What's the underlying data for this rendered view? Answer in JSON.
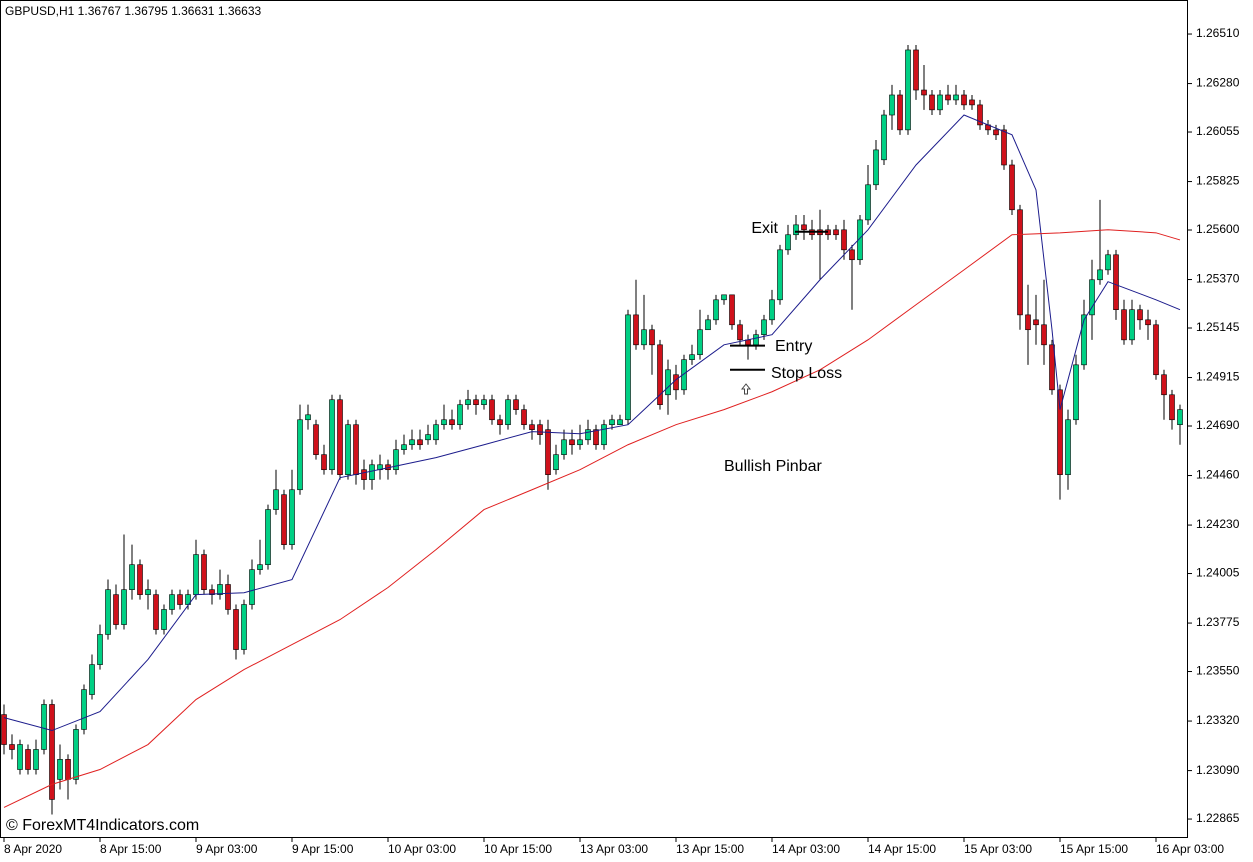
{
  "chart_data": {
    "type": "candlestick",
    "title": "GBPUSD,H1  1.36767 1.36795 1.36631 1.36633",
    "watermark": "© ForexMT4Indicators.com",
    "note": "Bullish Pinbar",
    "bull_color": "#00d084",
    "bear_color": "#d0111b",
    "wick_color": "#000000",
    "categories": [
      "8 Apr 2020",
      null,
      null,
      null,
      null,
      null,
      null,
      null,
      null,
      null,
      null,
      null,
      "8 Apr 15:00",
      null,
      null,
      null,
      null,
      null,
      null,
      null,
      null,
      null,
      null,
      null,
      "9 Apr 03:00",
      null,
      null,
      null,
      null,
      null,
      null,
      null,
      null,
      null,
      null,
      null,
      "9 Apr 15:00",
      null,
      null,
      null,
      null,
      null,
      null,
      null,
      null,
      null,
      null,
      null,
      "10 Apr 03:00",
      null,
      null,
      null,
      null,
      null,
      null,
      null,
      null,
      null,
      null,
      null,
      "10 Apr 15:00",
      null,
      null,
      null,
      null,
      null,
      null,
      null,
      null,
      null,
      null,
      null,
      "13 Apr 03:00",
      null,
      null,
      null,
      null,
      null,
      null,
      null,
      null,
      null,
      null,
      null,
      "13 Apr 15:00",
      null,
      null,
      null,
      null,
      null,
      null,
      null,
      null,
      null,
      null,
      null,
      "14 Apr 03:00",
      null,
      null,
      null,
      null,
      null,
      null,
      null,
      null,
      null,
      null,
      null,
      "14 Apr 15:00",
      null,
      null,
      null,
      null,
      null,
      null,
      null,
      null,
      null,
      null,
      null,
      "15 Apr 03:00",
      null,
      null,
      null,
      null,
      null,
      null,
      null,
      null,
      null,
      null,
      null,
      "15 Apr 15:00",
      null,
      null,
      null,
      null,
      null,
      null,
      null,
      null,
      null,
      null,
      null,
      "16 Apr 03:00",
      null,
      null,
      null
    ],
    "open": [
      1.2335,
      1.23211,
      1.23095,
      1.23188,
      1.23095,
      1.23188,
      1.23397,
      1.23049,
      1.23142,
      1.23049,
      1.23281,
      1.23443,
      1.23582,
      1.23722,
      1.23907,
      1.23768,
      1.2393,
      1.24046,
      1.23907,
      1.23907,
      1.23745,
      1.23838,
      1.23907,
      1.23861,
      1.23907,
      1.24093,
      1.2393,
      1.23907,
      1.23954,
      1.23838,
      1.23652,
      1.23861,
      1.24023,
      1.24046,
      1.24302,
      1.24371,
      1.24139,
      1.24394,
      1.24719,
      1.24696,
      1.24557,
      1.24487,
      1.24812,
      1.24464,
      1.24696,
      1.24487,
      1.24441,
      1.24487,
      1.2451,
      1.24487,
      1.2458,
      1.24603,
      1.24626,
      1.24626,
      1.24626,
      1.24696,
      1.24719,
      1.24696,
      1.24789,
      1.24812,
      1.24789,
      1.24812,
      1.24719,
      1.24696,
      1.24812,
      1.24766,
      1.24696,
      1.24696,
      1.24673,
      1.24487,
      1.24557,
      1.24626,
      1.24603,
      1.24626,
      1.24673,
      1.24603,
      1.24696,
      1.24696,
      1.24719,
      1.25206,
      1.25067,
      1.25137,
      1.25067,
      1.24835,
      1.24928,
      1.24858,
      1.24998,
      1.25021,
      1.25137,
      1.25183,
      1.25276,
      1.25299,
      1.2516,
      1.2509,
      1.25067,
      1.25114,
      1.25183,
      1.25276,
      1.25508,
      1.25578,
      1.25624,
      1.25601,
      1.25601,
      1.25601,
      1.25601,
      1.25601,
      1.25508,
      1.25462,
      1.25647,
      1.2581,
      1.25926,
      1.26134,
      1.26227,
      1.26065,
      1.26436,
      1.2625,
      1.26227,
      1.26158,
      1.26227,
      1.26204,
      1.26227,
      1.26204,
      1.26181,
      1.26088,
      1.26065,
      1.26065,
      1.25902,
      1.25694,
      1.25206,
      1.25183,
      1.2516,
      1.25067,
      1.24858,
      1.24464,
      1.24719,
      1.24974,
      1.25206,
      1.25369,
      1.25415,
      1.25485,
      1.2523,
      1.2509,
      1.2523,
      1.25183,
      1.2516,
      1.24928,
      1.24835,
      1.24696
    ],
    "high": [
      1.23397,
      1.23258,
      1.23234,
      1.23211,
      1.23234,
      1.2342,
      1.2342,
      1.23211,
      1.23165,
      1.23304,
      1.2349,
      1.23629,
      1.23768,
      1.23977,
      1.23954,
      1.24186,
      1.24139,
      1.2407,
      1.23977,
      1.2393,
      1.23861,
      1.2393,
      1.2393,
      1.2393,
      1.24162,
      1.24116,
      1.23954,
      1.24023,
      1.24,
      1.23861,
      1.23884,
      1.2407,
      1.24162,
      1.24325,
      1.24487,
      1.24394,
      1.24487,
      1.24789,
      1.24789,
      1.24719,
      1.24603,
      1.24835,
      1.24835,
      1.24719,
      1.24719,
      1.24534,
      1.24534,
      1.24557,
      1.24534,
      1.24626,
      1.2465,
      1.24673,
      1.24673,
      1.24696,
      1.24719,
      1.24789,
      1.24766,
      1.24812,
      1.24858,
      1.24835,
      1.24835,
      1.24835,
      1.24742,
      1.24835,
      1.24835,
      1.24789,
      1.24719,
      1.24719,
      1.24719,
      1.24603,
      1.24673,
      1.24673,
      1.24696,
      1.24719,
      1.24696,
      1.24719,
      1.24742,
      1.24742,
      1.2523,
      1.25369,
      1.25299,
      1.2516,
      1.2509,
      1.24998,
      1.24974,
      1.25021,
      1.25067,
      1.2523,
      1.25206,
      1.25299,
      1.25299,
      1.25299,
      1.25183,
      1.25114,
      1.25137,
      1.25206,
      1.25322,
      1.25531,
      1.25624,
      1.2567,
      1.2567,
      1.25647,
      1.25694,
      1.25624,
      1.25624,
      1.25647,
      1.25531,
      1.2567,
      1.25902,
      1.26018,
      1.26158,
      1.26274,
      1.2625,
      1.26459,
      1.26459,
      1.26366,
      1.2625,
      1.2625,
      1.26274,
      1.26274,
      1.2625,
      1.26227,
      1.26204,
      1.26111,
      1.26088,
      1.26088,
      1.25926,
      1.25717,
      1.25346,
      1.25299,
      1.25369,
      1.2509,
      1.24882,
      1.24766,
      1.25021,
      1.25276,
      1.25462,
      1.2574,
      1.25508,
      1.25508,
      1.25276,
      1.25276,
      1.25253,
      1.2523,
      1.25183,
      1.24951,
      1.24858,
      1.24789
    ],
    "low": [
      1.23165,
      1.23142,
      1.23072,
      1.23072,
      1.23072,
      1.23165,
      1.22886,
      1.23002,
      1.22956,
      1.23026,
      1.23258,
      1.2342,
      1.23559,
      1.23698,
      1.23745,
      1.23745,
      1.23884,
      1.23884,
      1.23838,
      1.23722,
      1.23722,
      1.23814,
      1.23838,
      1.23838,
      1.23884,
      1.23907,
      1.23861,
      1.23884,
      1.23814,
      1.23606,
      1.23629,
      1.23838,
      1.24,
      1.24023,
      1.24278,
      1.24116,
      1.24116,
      1.24371,
      1.24673,
      1.24534,
      1.24464,
      1.24464,
      1.24441,
      1.24441,
      1.24418,
      1.24394,
      1.24394,
      1.24441,
      1.24441,
      1.24464,
      1.24557,
      1.2458,
      1.2458,
      1.24603,
      1.24603,
      1.24673,
      1.24673,
      1.24673,
      1.24766,
      1.24742,
      1.24766,
      1.24696,
      1.2465,
      1.24673,
      1.24742,
      1.24673,
      1.24626,
      1.24603,
      1.24394,
      1.24464,
      1.24534,
      1.24557,
      1.2458,
      1.24603,
      1.2458,
      1.2458,
      1.24673,
      1.24696,
      1.24696,
      1.25044,
      1.25044,
      1.24928,
      1.24766,
      1.24742,
      1.24812,
      1.24835,
      1.24974,
      1.24998,
      1.25137,
      1.2516,
      1.25253,
      1.25137,
      1.25067,
      1.24998,
      1.25044,
      1.2509,
      1.2516,
      1.25253,
      1.25485,
      1.25554,
      1.25554,
      1.25554,
      1.25369,
      1.25554,
      1.25554,
      1.25462,
      1.2523,
      1.25438,
      1.25624,
      1.25786,
      1.25902,
      1.26065,
      1.26042,
      1.26042,
      1.26204,
      1.26158,
      1.26134,
      1.26134,
      1.26181,
      1.26181,
      1.26158,
      1.26158,
      1.26065,
      1.26042,
      1.26018,
      1.25879,
      1.2567,
      1.25137,
      1.24974,
      1.25067,
      1.24974,
      1.24835,
      1.24348,
      1.24394,
      1.24696,
      1.24951,
      1.2509,
      1.25346,
      1.25392,
      1.25183,
      1.25067,
      1.25067,
      1.25137,
      1.2509,
      1.24905,
      1.24719,
      1.24673,
      1.24603
    ],
    "close": [
      1.23211,
      1.23188,
      1.23211,
      1.23095,
      1.23188,
      1.23397,
      1.22956,
      1.23142,
      1.23049,
      1.23281,
      1.23466,
      1.23582,
      1.23722,
      1.2393,
      1.23768,
      1.2393,
      1.24046,
      1.23907,
      1.2393,
      1.23745,
      1.23838,
      1.23907,
      1.23861,
      1.23907,
      1.24093,
      1.2393,
      1.23907,
      1.23954,
      1.23838,
      1.23652,
      1.23861,
      1.24023,
      1.24046,
      1.24302,
      1.24394,
      1.24139,
      1.24394,
      1.24719,
      1.24742,
      1.24557,
      1.24487,
      1.24812,
      1.24464,
      1.24696,
      1.24464,
      1.24441,
      1.2451,
      1.2451,
      1.24487,
      1.2458,
      1.24603,
      1.24626,
      1.24603,
      1.2465,
      1.24696,
      1.24719,
      1.24696,
      1.24789,
      1.24812,
      1.24789,
      1.24812,
      1.24719,
      1.24696,
      1.24812,
      1.24766,
      1.24696,
      1.24673,
      1.2465,
      1.24464,
      1.24557,
      1.24626,
      1.24603,
      1.24626,
      1.24673,
      1.24603,
      1.24696,
      1.24719,
      1.24719,
      1.25206,
      1.25067,
      1.25137,
      1.25067,
      1.24789,
      1.24951,
      1.24858,
      1.24998,
      1.25021,
      1.25137,
      1.25183,
      1.25276,
      1.25299,
      1.2516,
      1.2509,
      1.25067,
      1.25114,
      1.25183,
      1.25276,
      1.25508,
      1.25578,
      1.25624,
      1.25601,
      1.25578,
      1.25578,
      1.25578,
      1.25578,
      1.25508,
      1.25462,
      1.25647,
      1.2581,
      1.25972,
      1.26134,
      1.26227,
      1.26065,
      1.26436,
      1.2625,
      1.26227,
      1.26158,
      1.26227,
      1.26204,
      1.26227,
      1.26181,
      1.26181,
      1.26088,
      1.26065,
      1.26042,
      1.25902,
      1.25694,
      1.25206,
      1.25137,
      1.2516,
      1.25067,
      1.24858,
      1.24464,
      1.24719,
      1.24974,
      1.25206,
      1.25369,
      1.25415,
      1.25485,
      1.2523,
      1.2509,
      1.2523,
      1.25183,
      1.2516,
      1.24928,
      1.24835,
      1.24719,
      1.24766
    ],
    "moving_averages": [
      {
        "color": "#1c1c8c",
        "x": [
          0,
          6,
          12,
          18,
          24,
          30,
          36,
          42,
          48,
          54,
          60,
          66,
          72,
          78,
          84,
          90,
          96,
          102,
          108,
          114,
          120,
          126,
          129,
          131,
          132,
          135,
          138,
          144,
          147
        ],
        "values": [
          1.23336,
          1.23276,
          1.23364,
          1.23606,
          1.23907,
          1.23916,
          1.23977,
          1.2445,
          1.24496,
          1.24543,
          1.24603,
          1.24664,
          1.24654,
          1.24696,
          1.24905,
          1.25067,
          1.25114,
          1.25369,
          1.25601,
          1.25902,
          1.26134,
          1.26042,
          1.25786,
          1.25137,
          1.24766,
          1.25183,
          1.2536,
          1.25276,
          1.2523
        ]
      },
      {
        "color": "#e02020",
        "x": [
          0,
          6,
          12,
          18,
          24,
          30,
          36,
          42,
          48,
          54,
          60,
          66,
          72,
          78,
          84,
          90,
          96,
          102,
          108,
          114,
          120,
          126,
          132,
          138,
          144,
          147
        ],
        "values": [
          1.22919,
          1.23026,
          1.23095,
          1.23211,
          1.2342,
          1.23559,
          1.23675,
          1.23791,
          1.2394,
          1.24116,
          1.24302,
          1.24394,
          1.24487,
          1.24603,
          1.24696,
          1.24766,
          1.24849,
          1.24951,
          1.2509,
          1.25253,
          1.25415,
          1.25578,
          1.25587,
          1.25601,
          1.25587,
          1.25554
        ]
      }
    ],
    "annotations": [
      {
        "label": "Exit",
        "value": 1.25592
      },
      {
        "label": "Entry",
        "value": 1.25063
      },
      {
        "label": "Stop Loss",
        "value": 1.24951
      }
    ],
    "ylim": [
      1.22777,
      1.26668
    ],
    "yticks": [
      {
        "value": 1.2651,
        "label": "1.26510"
      },
      {
        "value": 1.2628,
        "label": "1.26280"
      },
      {
        "value": 1.26055,
        "label": "1.26055"
      },
      {
        "value": 1.25825,
        "label": "1.25825"
      },
      {
        "value": 1.256,
        "label": "1.25600"
      },
      {
        "value": 1.2537,
        "label": "1.25370"
      },
      {
        "value": 1.25145,
        "label": "1.25145"
      },
      {
        "value": 1.24915,
        "label": "1.24915"
      },
      {
        "value": 1.2469,
        "label": "1.24690"
      },
      {
        "value": 1.2446,
        "label": "1.24460"
      },
      {
        "value": 1.2423,
        "label": "1.24230"
      },
      {
        "value": 1.24005,
        "label": "1.24005"
      },
      {
        "value": 1.23775,
        "label": "1.23775"
      },
      {
        "value": 1.2355,
        "label": "1.23550"
      },
      {
        "value": 1.2332,
        "label": "1.23320"
      },
      {
        "value": 1.2309,
        "label": "1.23090"
      },
      {
        "value": 1.22865,
        "label": "1.22865"
      }
    ]
  }
}
